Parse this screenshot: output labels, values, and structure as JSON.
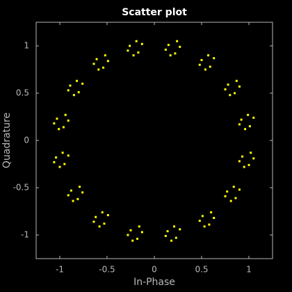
{
  "chart_data": {
    "type": "scatter",
    "title": "Scatter plot",
    "xlabel": "In-Phase",
    "ylabel": "Quadrature",
    "color": "#ffff00",
    "xlim": [
      -1.25,
      1.25
    ],
    "ylim": [
      -1.25,
      1.25
    ],
    "xticks": [
      -1,
      -0.5,
      0,
      0.5,
      1
    ],
    "yticks": [
      -1,
      -0.5,
      0,
      0.5,
      1
    ],
    "x": [
      1.01,
      0.92,
      1.05,
      0.96,
      0.99,
      0.9,
      0.78,
      0.85,
      0.87,
      0.75,
      0.9,
      0.8,
      0.59,
      0.5,
      0.63,
      0.54,
      0.57,
      0.48,
      0.15,
      0.22,
      0.24,
      0.12,
      0.27,
      0.17,
      -0.17,
      -0.26,
      -0.13,
      -0.22,
      -0.19,
      -0.28,
      -0.61,
      -0.54,
      -0.52,
      -0.64,
      -0.49,
      -0.59,
      -0.8,
      -0.89,
      -0.76,
      -0.85,
      -0.82,
      -0.91,
      -1.03,
      -0.96,
      -0.94,
      -1.06,
      -0.91,
      -1.01,
      -0.95,
      -1.04,
      -0.91,
      -1.0,
      -0.97,
      -1.06,
      -0.88,
      -0.81,
      -0.79,
      -0.91,
      -0.76,
      -0.86,
      -0.53,
      -0.62,
      -0.49,
      -0.58,
      -0.55,
      -0.64,
      -0.25,
      -0.18,
      -0.16,
      -0.28,
      -0.13,
      -0.23,
      0.23,
      0.14,
      0.27,
      0.18,
      0.21,
      0.12,
      0.51,
      0.58,
      0.6,
      0.48,
      0.63,
      0.53,
      0.86,
      0.77,
      0.9,
      0.81,
      0.84,
      0.75,
      0.93,
      1.0,
      1.02,
      0.9,
      1.05,
      0.95
    ],
    "y": [
      0.15,
      0.22,
      0.24,
      0.12,
      0.27,
      0.17,
      0.59,
      0.5,
      0.63,
      0.54,
      0.57,
      0.48,
      0.78,
      0.85,
      0.87,
      0.75,
      0.9,
      0.8,
      1.01,
      0.92,
      1.05,
      0.96,
      0.99,
      0.9,
      0.93,
      1.0,
      1.02,
      0.9,
      1.05,
      0.95,
      0.86,
      0.77,
      0.9,
      0.81,
      0.84,
      0.75,
      0.51,
      0.58,
      0.6,
      0.48,
      0.63,
      0.53,
      0.23,
      0.14,
      0.27,
      0.18,
      0.21,
      0.12,
      -0.25,
      -0.18,
      -0.16,
      -0.28,
      -0.13,
      -0.23,
      -0.53,
      -0.62,
      -0.49,
      -0.58,
      -0.55,
      -0.64,
      -0.88,
      -0.81,
      -0.79,
      -0.91,
      -0.76,
      -0.86,
      -0.95,
      -1.04,
      -0.91,
      -1.0,
      -0.97,
      -1.06,
      -1.03,
      -0.96,
      -0.94,
      -1.06,
      -0.91,
      -1.01,
      -0.8,
      -0.89,
      -0.76,
      -0.85,
      -0.82,
      -0.91,
      -0.61,
      -0.54,
      -0.52,
      -0.64,
      -0.49,
      -0.59,
      -0.17,
      -0.26,
      -0.13,
      -0.22,
      -0.19,
      -0.28
    ]
  }
}
